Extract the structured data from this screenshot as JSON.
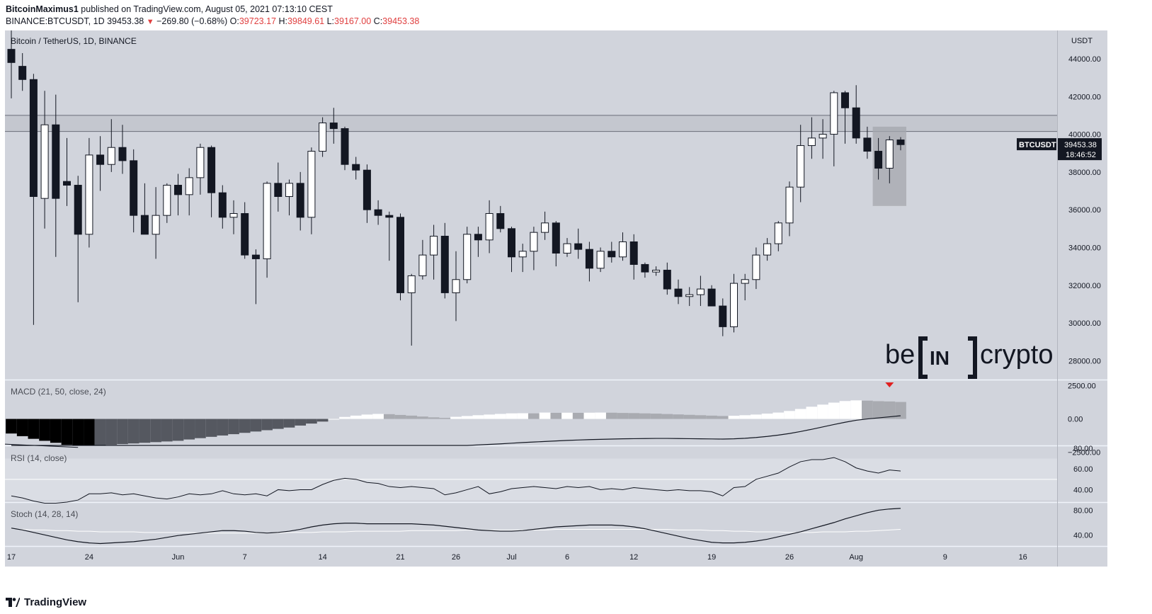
{
  "header": {
    "author": "BitcoinMaximus1",
    "published_text": "published on TradingView.com, August 05, 2021 07:13:10 CEST",
    "symbol_line": "BINANCE:BTCUSDT, 1D",
    "last": "39453.38",
    "change": "−269.80 (−0.68%)",
    "o_label": "O:",
    "o_value": "39723.17",
    "h_label": "H:",
    "h_value": "39849.61",
    "l_label": "L:",
    "l_value": "39167.00",
    "c_label": "C:",
    "c_value": "39453.38"
  },
  "footer": {
    "brand": "TradingView"
  },
  "watermark": {
    "left": "be",
    "mid": "IN",
    "right": "crypto"
  },
  "colors": {
    "panel_bg": "#d1d4dc",
    "up": "#ffffff",
    "down": "#131722",
    "text": "#131722",
    "neg": "#e04040"
  },
  "chart_data": [
    {
      "type": "candlestick",
      "title": "Bitcoin / TetherUS, 1D, BINANCE",
      "currency": "USDT",
      "ylim": [
        27000,
        45500
      ],
      "yticks": [
        "28000.00",
        "30000.00",
        "32000.00",
        "34000.00",
        "36000.00",
        "38000.00",
        "40000.00",
        "42000.00",
        "44000.00"
      ],
      "xticks": [
        {
          "label": "17",
          "idx": 0
        },
        {
          "label": "24",
          "idx": 7
        },
        {
          "label": "Jun",
          "idx": 15
        },
        {
          "label": "7",
          "idx": 21
        },
        {
          "label": "14",
          "idx": 28
        },
        {
          "label": "21",
          "idx": 35
        },
        {
          "label": "26",
          "idx": 40
        },
        {
          "label": "Jul",
          "idx": 45
        },
        {
          "label": "6",
          "idx": 50
        },
        {
          "label": "12",
          "idx": 56
        },
        {
          "label": "19",
          "idx": 63
        },
        {
          "label": "26",
          "idx": 70
        },
        {
          "label": "Aug",
          "idx": 76
        },
        {
          "label": "9",
          "idx": 84
        },
        {
          "label": "16",
          "idx": 91
        }
      ],
      "resistance_band": [
        40150,
        41000
      ],
      "highlight_box": {
        "from_idx": 78,
        "to_idx": 80,
        "top": 40400,
        "bottom": 36200
      },
      "price_tag": {
        "symbol": "BTCUSDT",
        "price": "39453.38",
        "countdown": "18:46:52"
      },
      "candles": [
        {
          "o": 44500,
          "h": 45500,
          "l": 41900,
          "c": 43800
        },
        {
          "o": 43600,
          "h": 44300,
          "l": 42300,
          "c": 42900
        },
        {
          "o": 42900,
          "h": 43200,
          "l": 29900,
          "c": 36700
        },
        {
          "o": 36600,
          "h": 42300,
          "l": 35000,
          "c": 40500
        },
        {
          "o": 40500,
          "h": 42100,
          "l": 33500,
          "c": 36600
        },
        {
          "o": 37500,
          "h": 39800,
          "l": 36200,
          "c": 37300
        },
        {
          "o": 37300,
          "h": 37800,
          "l": 31100,
          "c": 34700
        },
        {
          "o": 34700,
          "h": 39800,
          "l": 34000,
          "c": 38900
        },
        {
          "o": 38900,
          "h": 39900,
          "l": 37000,
          "c": 38400
        },
        {
          "o": 38400,
          "h": 40800,
          "l": 38000,
          "c": 39300
        },
        {
          "o": 39300,
          "h": 40500,
          "l": 37900,
          "c": 38600
        },
        {
          "o": 38600,
          "h": 39200,
          "l": 34800,
          "c": 35700
        },
        {
          "o": 35700,
          "h": 37400,
          "l": 34700,
          "c": 34700
        },
        {
          "o": 34700,
          "h": 37200,
          "l": 33400,
          "c": 35700
        },
        {
          "o": 35700,
          "h": 37400,
          "l": 35300,
          "c": 37300
        },
        {
          "o": 37300,
          "h": 37900,
          "l": 35700,
          "c": 36800
        },
        {
          "o": 36800,
          "h": 38200,
          "l": 35700,
          "c": 37700
        },
        {
          "o": 37700,
          "h": 39500,
          "l": 36800,
          "c": 39300
        },
        {
          "o": 39300,
          "h": 39400,
          "l": 35600,
          "c": 36900
        },
        {
          "o": 36900,
          "h": 37300,
          "l": 35000,
          "c": 35600
        },
        {
          "o": 35600,
          "h": 36500,
          "l": 34700,
          "c": 35800
        },
        {
          "o": 35800,
          "h": 36400,
          "l": 33400,
          "c": 33600
        },
        {
          "o": 33600,
          "h": 33900,
          "l": 31000,
          "c": 33400
        },
        {
          "o": 33400,
          "h": 37500,
          "l": 32400,
          "c": 37400
        },
        {
          "o": 37400,
          "h": 38500,
          "l": 35900,
          "c": 36700
        },
        {
          "o": 36700,
          "h": 37600,
          "l": 35700,
          "c": 37400
        },
        {
          "o": 37400,
          "h": 38000,
          "l": 34900,
          "c": 35600
        },
        {
          "o": 35600,
          "h": 39300,
          "l": 34700,
          "c": 39100
        },
        {
          "o": 39100,
          "h": 40900,
          "l": 38800,
          "c": 40600
        },
        {
          "o": 40600,
          "h": 41400,
          "l": 39500,
          "c": 40300
        },
        {
          "o": 40300,
          "h": 40400,
          "l": 38100,
          "c": 38400
        },
        {
          "o": 38400,
          "h": 38800,
          "l": 37600,
          "c": 38100
        },
        {
          "o": 38100,
          "h": 38400,
          "l": 35300,
          "c": 36000
        },
        {
          "o": 36000,
          "h": 36500,
          "l": 35200,
          "c": 35700
        },
        {
          "o": 35700,
          "h": 35900,
          "l": 33300,
          "c": 35600
        },
        {
          "o": 35600,
          "h": 35800,
          "l": 31200,
          "c": 31600
        },
        {
          "o": 31600,
          "h": 32600,
          "l": 28800,
          "c": 32500
        },
        {
          "o": 32500,
          "h": 34400,
          "l": 32300,
          "c": 33600
        },
        {
          "o": 33600,
          "h": 35200,
          "l": 32300,
          "c": 34600
        },
        {
          "o": 34600,
          "h": 35300,
          "l": 31300,
          "c": 31600
        },
        {
          "o": 31600,
          "h": 33800,
          "l": 30100,
          "c": 32300
        },
        {
          "o": 32300,
          "h": 35100,
          "l": 32100,
          "c": 34700
        },
        {
          "o": 34700,
          "h": 35100,
          "l": 33500,
          "c": 34400
        },
        {
          "o": 34400,
          "h": 36500,
          "l": 33700,
          "c": 35800
        },
        {
          "o": 35800,
          "h": 36200,
          "l": 34800,
          "c": 35000
        },
        {
          "o": 35000,
          "h": 35100,
          "l": 32700,
          "c": 33500
        },
        {
          "o": 33500,
          "h": 34200,
          "l": 32700,
          "c": 33800
        },
        {
          "o": 33800,
          "h": 35100,
          "l": 32800,
          "c": 34800
        },
        {
          "o": 34800,
          "h": 35900,
          "l": 34400,
          "c": 35300
        },
        {
          "o": 35300,
          "h": 35400,
          "l": 33000,
          "c": 33700
        },
        {
          "o": 33700,
          "h": 34500,
          "l": 33500,
          "c": 34200
        },
        {
          "o": 34200,
          "h": 35000,
          "l": 33400,
          "c": 33900
        },
        {
          "o": 33900,
          "h": 34300,
          "l": 32200,
          "c": 32900
        },
        {
          "o": 32900,
          "h": 34000,
          "l": 32700,
          "c": 33800
        },
        {
          "o": 33800,
          "h": 34300,
          "l": 33200,
          "c": 33500
        },
        {
          "o": 33500,
          "h": 34800,
          "l": 33300,
          "c": 34300
        },
        {
          "o": 34300,
          "h": 34700,
          "l": 32300,
          "c": 33100
        },
        {
          "o": 33100,
          "h": 33200,
          "l": 32400,
          "c": 32700
        },
        {
          "o": 32700,
          "h": 33000,
          "l": 32500,
          "c": 32800
        },
        {
          "o": 32800,
          "h": 33200,
          "l": 31500,
          "c": 31800
        },
        {
          "o": 31800,
          "h": 32300,
          "l": 31000,
          "c": 31400
        },
        {
          "o": 31400,
          "h": 31900,
          "l": 30900,
          "c": 31500
        },
        {
          "o": 31500,
          "h": 32500,
          "l": 30900,
          "c": 31800
        },
        {
          "o": 31800,
          "h": 32000,
          "l": 30900,
          "c": 30900
        },
        {
          "o": 30900,
          "h": 31300,
          "l": 29300,
          "c": 29800
        },
        {
          "o": 29800,
          "h": 32600,
          "l": 29500,
          "c": 32100
        },
        {
          "o": 32100,
          "h": 32600,
          "l": 31200,
          "c": 32300
        },
        {
          "o": 32300,
          "h": 34000,
          "l": 31800,
          "c": 33600
        },
        {
          "o": 33600,
          "h": 34500,
          "l": 33300,
          "c": 34200
        },
        {
          "o": 34200,
          "h": 35400,
          "l": 33800,
          "c": 35300
        },
        {
          "o": 35300,
          "h": 37500,
          "l": 34600,
          "c": 37200
        },
        {
          "o": 37200,
          "h": 40500,
          "l": 36400,
          "c": 39400
        },
        {
          "o": 39400,
          "h": 40900,
          "l": 38700,
          "c": 39800
        },
        {
          "o": 39800,
          "h": 40800,
          "l": 38700,
          "c": 40000
        },
        {
          "o": 40000,
          "h": 42300,
          "l": 38300,
          "c": 42200
        },
        {
          "o": 42200,
          "h": 42300,
          "l": 39500,
          "c": 41400
        },
        {
          "o": 41400,
          "h": 42600,
          "l": 39500,
          "c": 39800
        },
        {
          "o": 39800,
          "h": 40400,
          "l": 38700,
          "c": 39100
        },
        {
          "o": 39100,
          "h": 39800,
          "l": 37600,
          "c": 38200
        },
        {
          "o": 38200,
          "h": 39900,
          "l": 37400,
          "c": 39700
        },
        {
          "o": 39700,
          "h": 39850,
          "l": 39150,
          "c": 39450
        }
      ]
    },
    {
      "type": "histogram",
      "title": "MACD (21, 50, close, 24)",
      "ylim": [
        -2000,
        2700
      ],
      "yticks": [
        "2500.00",
        "0.00",
        "−2500.00"
      ],
      "signal_marker": "down-arrow",
      "histogram": [
        -1100,
        -1300,
        -1500,
        -1650,
        -1800,
        -1950,
        -2000,
        -2050,
        -2000,
        -1950,
        -1900,
        -1850,
        -1800,
        -1750,
        -1700,
        -1650,
        -1550,
        -1450,
        -1350,
        -1250,
        -1150,
        -1050,
        -950,
        -850,
        -750,
        -650,
        -500,
        -350,
        -200,
        0,
        150,
        250,
        330,
        380,
        360,
        300,
        250,
        180,
        120,
        80,
        160,
        220,
        280,
        330,
        380,
        420,
        430,
        420,
        480,
        460,
        470,
        460,
        470,
        480,
        470,
        450,
        440,
        420,
        400,
        370,
        340,
        310,
        280,
        250,
        220,
        240,
        280,
        330,
        400,
        480,
        600,
        750,
        920,
        1080,
        1230,
        1350,
        1400,
        1380,
        1340,
        1320,
        1280
      ],
      "signal_line": [
        -3400,
        -3380,
        -3360,
        -3340,
        -3320,
        -3300,
        -3280,
        -3260,
        -3230,
        -3200,
        -3170,
        -3140,
        -3100,
        -3060,
        -3020,
        -2980,
        -2940,
        -2900,
        -2860,
        -2820,
        -2780,
        -2740,
        -2700,
        -2660,
        -2620,
        -2580,
        -2540,
        -2500,
        -2460,
        -2420,
        -2380,
        -2340,
        -2300,
        -2260,
        -2220,
        -2180,
        -2140,
        -2100,
        -2060,
        -2040,
        -2030,
        -2000,
        -1960,
        -1920,
        -1880,
        -1830,
        -1780,
        -1740,
        -1700,
        -1660,
        -1620,
        -1590,
        -1560,
        -1540,
        -1520,
        -1500,
        -1490,
        -1480,
        -1470,
        -1470,
        -1480,
        -1490,
        -1500,
        -1510,
        -1520,
        -1500,
        -1460,
        -1400,
        -1320,
        -1220,
        -1100,
        -950,
        -780,
        -600,
        -420,
        -250,
        -100,
        0,
        80,
        160,
        240
      ]
    },
    {
      "type": "line",
      "title": "RSI (14, close)",
      "ylim": [
        28,
        82
      ],
      "yticks": [
        "80.00",
        "60.00",
        "40.00"
      ],
      "band": [
        30,
        70
      ],
      "midline": 50,
      "values": [
        34,
        32,
        29,
        27,
        27,
        28,
        30,
        36,
        36,
        37,
        35,
        36,
        34,
        32,
        31,
        33,
        36,
        35,
        36,
        39,
        36,
        35,
        36,
        34,
        40,
        39,
        40,
        40,
        45,
        49,
        51,
        50,
        47,
        46,
        43,
        42,
        43,
        42,
        41,
        35,
        37,
        40,
        43,
        36,
        38,
        41,
        42,
        43,
        42,
        41,
        43,
        42,
        43,
        40,
        41,
        40,
        42,
        41,
        40,
        39,
        40,
        39,
        39,
        38,
        34,
        42,
        43,
        50,
        53,
        56,
        62,
        67,
        69,
        69,
        71,
        67,
        61,
        58,
        56,
        59,
        58
      ],
      "values_offset": 0
    },
    {
      "type": "line",
      "title": "Stoch (14, 28, 14)",
      "ylim": [
        22,
        92
      ],
      "yticks": [
        "80.00",
        "40.00"
      ],
      "k": [
        51,
        48,
        44,
        40,
        36,
        32,
        29,
        27,
        26,
        27,
        28,
        29,
        31,
        33,
        36,
        39,
        41,
        43,
        45,
        47,
        47,
        46,
        44,
        43,
        44,
        46,
        49,
        53,
        56,
        58,
        59,
        59,
        58,
        58,
        58,
        58,
        58,
        57,
        56,
        54,
        52,
        50,
        48,
        47,
        46,
        46,
        47,
        49,
        51,
        53,
        54,
        55,
        56,
        56,
        56,
        55,
        53,
        50,
        46,
        42,
        38,
        34,
        31,
        28,
        27,
        27,
        28,
        30,
        33,
        37,
        41,
        45,
        50,
        55,
        60,
        66,
        71,
        76,
        80,
        82,
        83
      ],
      "d": [
        50,
        49,
        48,
        48,
        47,
        47,
        46,
        46,
        45,
        45,
        45,
        45,
        44,
        44,
        44,
        44,
        44,
        43,
        43,
        43,
        43,
        43,
        43,
        43,
        43,
        44,
        44,
        44,
        45,
        45,
        45,
        46,
        46,
        46,
        46,
        46,
        47,
        47,
        47,
        47,
        47,
        48,
        48,
        48,
        48,
        48,
        48,
        48,
        48,
        49,
        49,
        49,
        49,
        49,
        49,
        49,
        49,
        49,
        49,
        49,
        48,
        48,
        48,
        47,
        47,
        46,
        46,
        45,
        45,
        45,
        44,
        44,
        44,
        45,
        45,
        45,
        46,
        46,
        47,
        48,
        49
      ]
    }
  ]
}
